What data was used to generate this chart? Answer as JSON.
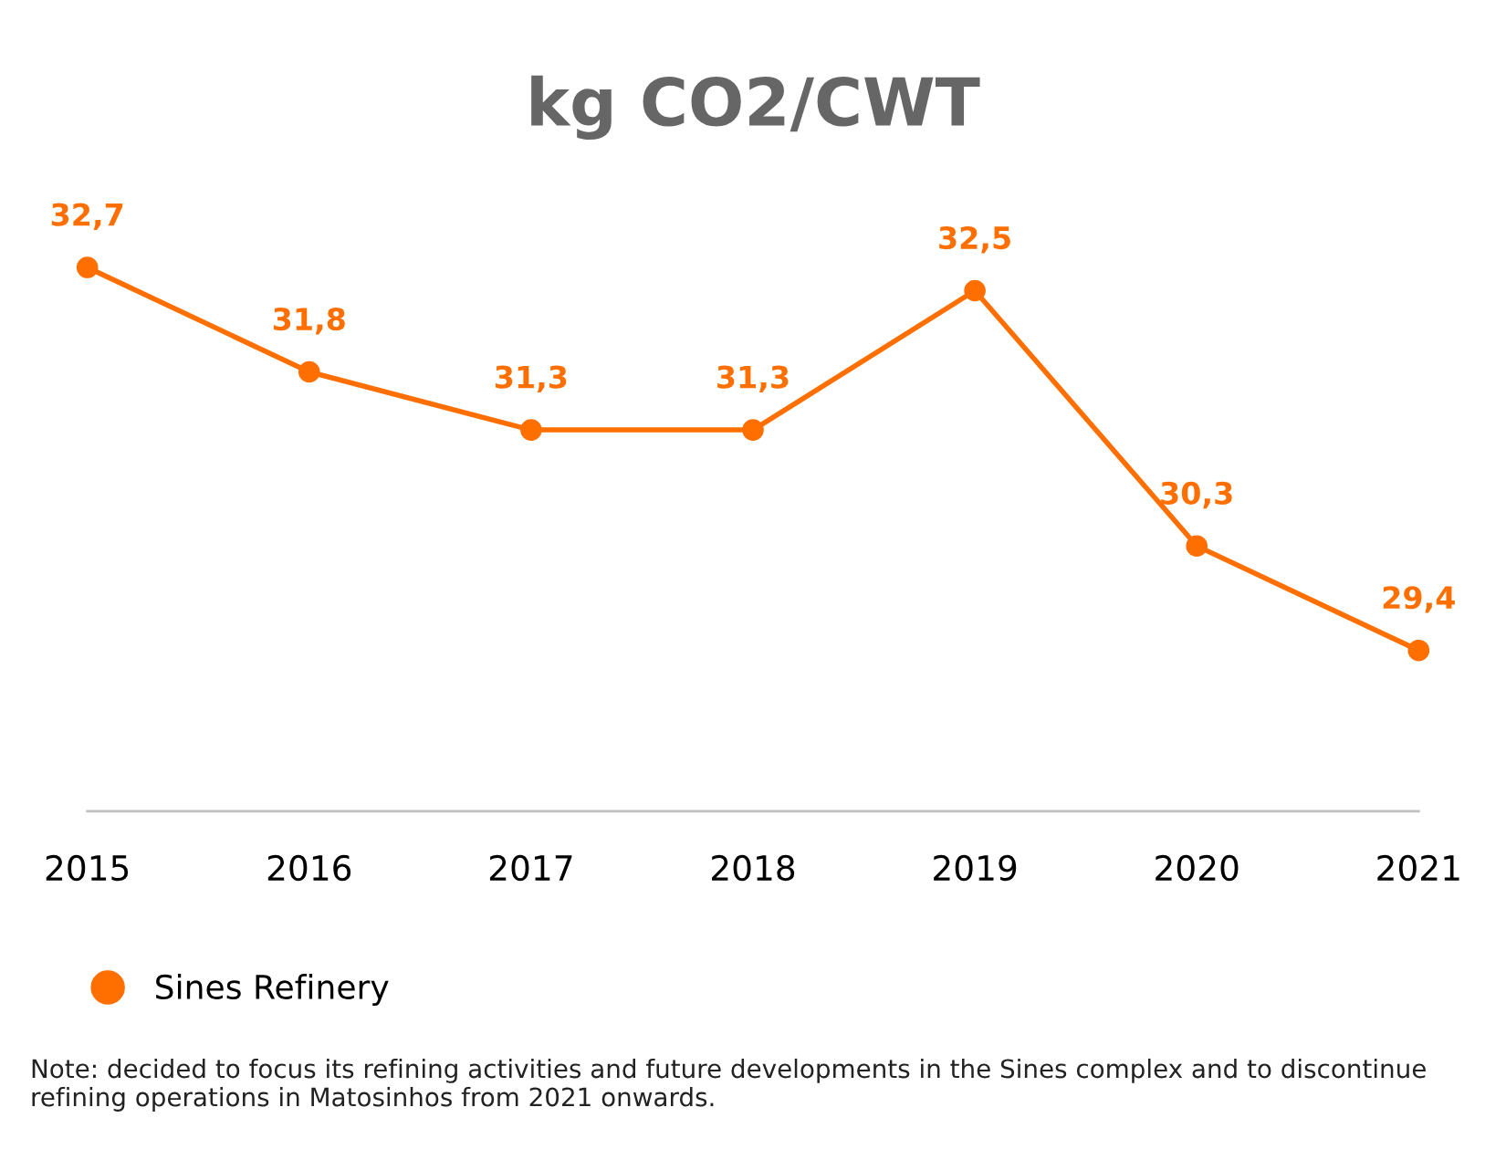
{
  "chart_data": {
    "type": "line",
    "title": "kg CO2/CWT",
    "categories": [
      "2015",
      "2016",
      "2017",
      "2018",
      "2019",
      "2020",
      "2021"
    ],
    "series": [
      {
        "name": "Sines Refinery",
        "color": "#ff6f00",
        "values": [
          32.7,
          31.8,
          31.3,
          31.3,
          32.5,
          30.3,
          29.4
        ],
        "value_labels": [
          "32,7",
          "31,8",
          "31,3",
          "31,3",
          "32,5",
          "30,3",
          "29,4"
        ]
      }
    ],
    "tick_labels": "x",
    "grid": false,
    "legend": "bottom",
    "marker": "circle",
    "line_style": "solid",
    "annotations": [
      "Note: decided to focus its refining activities and future developments in the Sines complex and to discontinue refining operations in Matosinhos from 2021 onwards."
    ]
  }
}
